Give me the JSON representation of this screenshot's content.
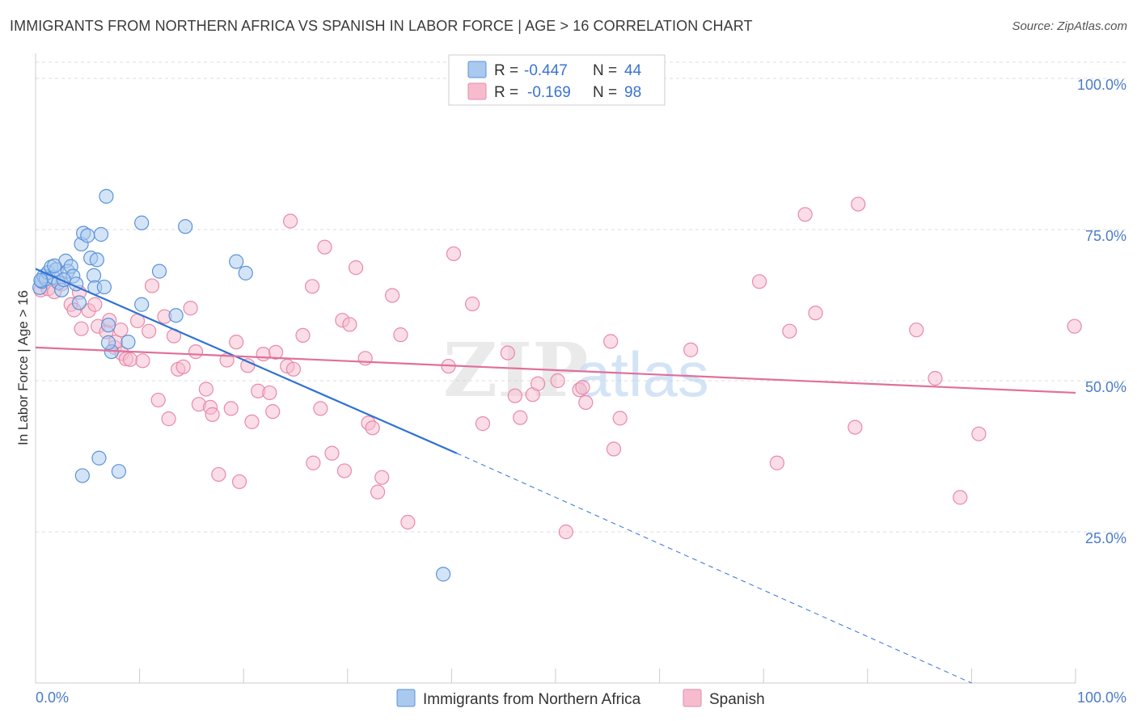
{
  "title": "IMMIGRANTS FROM NORTHERN AFRICA VS SPANISH IN LABOR FORCE | AGE > 16 CORRELATION CHART",
  "source": "Source: ZipAtlas.com",
  "watermark": {
    "zip": "ZIP",
    "atlas": "atlas"
  },
  "colors": {
    "blue_fill": "#a9c9ef",
    "blue_stroke": "#5b93d8",
    "blue_line": "#2f72d4",
    "pink_fill": "#f6bccd",
    "pink_stroke": "#e88aa8",
    "pink_line": "#e0709a",
    "axis_label": "#4a7cc7",
    "grid": "#dddddd"
  },
  "legend": {
    "rows": [
      {
        "r_label": "R =",
        "r_value": "-0.447",
        "n_label": "N =",
        "n_value": "44",
        "series": "blue"
      },
      {
        "r_label": "R =",
        "r_value": "-0.169",
        "n_label": "N =",
        "n_value": "98",
        "series": "pink"
      }
    ]
  },
  "chart_data": {
    "type": "scatter",
    "xlabel": "",
    "ylabel": "In Labor Force | Age > 16",
    "xlim": [
      0,
      100
    ],
    "ylim": [
      0,
      103
    ],
    "x_tick_labels": [
      "0.0%",
      "100.0%"
    ],
    "y_ticks": [
      25,
      50,
      75,
      100
    ],
    "y_tick_labels": [
      "25.0%",
      "50.0%",
      "75.0%",
      "100.0%"
    ],
    "grid": true,
    "series": [
      {
        "name": "Immigrants from Northern Africa",
        "color": "blue",
        "trend": {
          "x0": 0,
          "y0": 68.5,
          "x1": 40.5,
          "y1": 38,
          "dash_to_x": 90,
          "dash_to_y": 0
        },
        "points": [
          [
            0.4,
            65.4
          ],
          [
            0.6,
            66.4
          ],
          [
            0.8,
            67.3
          ],
          [
            1.0,
            66.8
          ],
          [
            1.2,
            67.9
          ],
          [
            1.5,
            68.8
          ],
          [
            1.7,
            67.1
          ],
          [
            2.0,
            68.4
          ],
          [
            2.2,
            66.2
          ],
          [
            2.5,
            65.0
          ],
          [
            2.9,
            69.8
          ],
          [
            3.1,
            68.1
          ],
          [
            3.4,
            68.9
          ],
          [
            3.6,
            67.3
          ],
          [
            3.9,
            66.0
          ],
          [
            4.2,
            62.9
          ],
          [
            4.4,
            72.6
          ],
          [
            4.6,
            74.4
          ],
          [
            5.0,
            74.0
          ],
          [
            5.3,
            70.3
          ],
          [
            5.6,
            67.4
          ],
          [
            5.7,
            65.4
          ],
          [
            5.9,
            70.0
          ],
          [
            6.3,
            74.2
          ],
          [
            6.6,
            65.5
          ],
          [
            6.8,
            80.5
          ],
          [
            7.0,
            59.2
          ],
          [
            7.3,
            54.8
          ],
          [
            7.0,
            56.3
          ],
          [
            8.9,
            56.4
          ],
          [
            10.2,
            76.1
          ],
          [
            10.2,
            62.6
          ],
          [
            11.9,
            68.1
          ],
          [
            13.5,
            60.8
          ],
          [
            14.4,
            75.5
          ],
          [
            19.3,
            69.7
          ],
          [
            20.2,
            67.8
          ],
          [
            4.5,
            34.3
          ],
          [
            6.1,
            37.2
          ],
          [
            8.0,
            35.0
          ],
          [
            39.2,
            18.0
          ],
          [
            1.8,
            69.0
          ],
          [
            2.7,
            66.7
          ],
          [
            0.5,
            66.6
          ]
        ]
      },
      {
        "name": "Spanish",
        "color": "pink",
        "trend": {
          "x0": 0,
          "y0": 55.5,
          "x1": 100,
          "y1": 48.0
        },
        "points": [
          [
            0.5,
            65.0
          ],
          [
            1.2,
            65.2
          ],
          [
            1.8,
            64.7
          ],
          [
            2.5,
            66.0
          ],
          [
            3.4,
            62.6
          ],
          [
            3.7,
            61.7
          ],
          [
            4.2,
            64.6
          ],
          [
            4.4,
            58.6
          ],
          [
            5.1,
            61.6
          ],
          [
            5.7,
            62.6
          ],
          [
            6.0,
            59.0
          ],
          [
            6.8,
            58.1
          ],
          [
            7.1,
            60.0
          ],
          [
            7.6,
            55.5
          ],
          [
            7.7,
            56.4
          ],
          [
            8.2,
            58.4
          ],
          [
            8.3,
            54.5
          ],
          [
            8.7,
            53.6
          ],
          [
            9.1,
            53.5
          ],
          [
            9.8,
            59.9
          ],
          [
            10.3,
            53.3
          ],
          [
            10.9,
            58.2
          ],
          [
            11.2,
            65.7
          ],
          [
            11.8,
            46.8
          ],
          [
            12.4,
            60.6
          ],
          [
            12.8,
            43.7
          ],
          [
            13.3,
            57.4
          ],
          [
            13.7,
            51.9
          ],
          [
            14.2,
            52.3
          ],
          [
            14.9,
            62.0
          ],
          [
            15.4,
            54.8
          ],
          [
            15.7,
            46.1
          ],
          [
            16.4,
            48.6
          ],
          [
            16.8,
            45.6
          ],
          [
            17.0,
            44.4
          ],
          [
            17.6,
            34.5
          ],
          [
            18.4,
            53.4
          ],
          [
            18.8,
            45.4
          ],
          [
            19.3,
            56.4
          ],
          [
            19.6,
            33.3
          ],
          [
            20.4,
            52.5
          ],
          [
            20.8,
            43.2
          ],
          [
            21.4,
            48.3
          ],
          [
            21.9,
            54.4
          ],
          [
            22.5,
            48.0
          ],
          [
            22.8,
            44.9
          ],
          [
            23.1,
            54.7
          ],
          [
            24.2,
            52.4
          ],
          [
            24.5,
            76.4
          ],
          [
            24.8,
            51.9
          ],
          [
            25.7,
            57.5
          ],
          [
            26.6,
            65.6
          ],
          [
            26.7,
            36.4
          ],
          [
            27.4,
            45.4
          ],
          [
            27.8,
            72.1
          ],
          [
            28.5,
            38.0
          ],
          [
            29.5,
            60.0
          ],
          [
            29.7,
            35.1
          ],
          [
            30.2,
            59.3
          ],
          [
            30.8,
            68.7
          ],
          [
            31.7,
            53.7
          ],
          [
            32.0,
            43.0
          ],
          [
            32.4,
            42.2
          ],
          [
            32.9,
            31.6
          ],
          [
            33.3,
            34.0
          ],
          [
            34.3,
            64.1
          ],
          [
            35.1,
            57.6
          ],
          [
            35.8,
            26.6
          ],
          [
            39.7,
            52.4
          ],
          [
            40.2,
            71.0
          ],
          [
            42.0,
            62.7
          ],
          [
            43.0,
            42.9
          ],
          [
            45.4,
            54.6
          ],
          [
            46.1,
            47.5
          ],
          [
            46.6,
            43.9
          ],
          [
            47.8,
            47.7
          ],
          [
            48.3,
            49.5
          ],
          [
            50.2,
            50.0
          ],
          [
            51.0,
            25.0
          ],
          [
            52.3,
            48.5
          ],
          [
            52.6,
            48.9
          ],
          [
            52.9,
            46.4
          ],
          [
            55.3,
            56.5
          ],
          [
            55.6,
            38.7
          ],
          [
            56.2,
            43.8
          ],
          [
            63.0,
            55.1
          ],
          [
            69.6,
            66.4
          ],
          [
            71.3,
            36.4
          ],
          [
            72.5,
            58.2
          ],
          [
            74.0,
            77.5
          ],
          [
            75.0,
            61.2
          ],
          [
            78.8,
            42.3
          ],
          [
            79.1,
            79.2
          ],
          [
            84.7,
            58.4
          ],
          [
            86.5,
            50.4
          ],
          [
            88.9,
            30.7
          ],
          [
            90.7,
            41.2
          ],
          [
            99.9,
            59.0
          ]
        ]
      }
    ]
  },
  "legend_bottom": [
    {
      "label": "Immigrants from Northern Africa",
      "color": "blue"
    },
    {
      "label": "Spanish",
      "color": "pink"
    }
  ]
}
